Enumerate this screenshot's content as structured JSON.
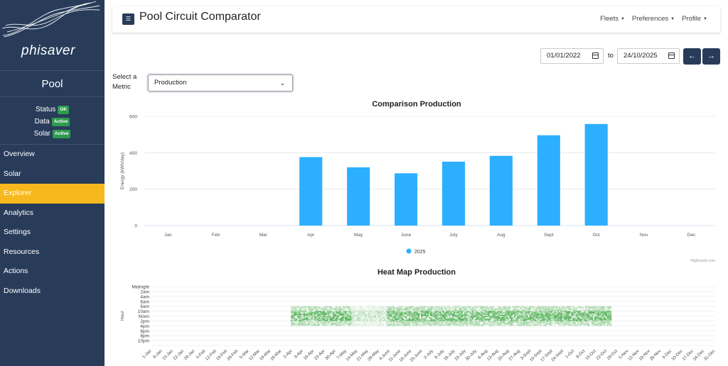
{
  "brand": {
    "name": "phisaver"
  },
  "site": {
    "name": "Pool"
  },
  "status": [
    {
      "label": "Status",
      "badge": "OK"
    },
    {
      "label": "Data",
      "badge": "Active"
    },
    {
      "label": "Solar",
      "badge": "Active"
    }
  ],
  "nav": [
    {
      "label": "Overview",
      "active": false
    },
    {
      "label": "Solar",
      "active": false
    },
    {
      "label": "Explorer",
      "active": true
    },
    {
      "label": "Analytics",
      "active": false
    },
    {
      "label": "Settings",
      "active": false
    },
    {
      "label": "Resources",
      "active": false
    },
    {
      "label": "Actions",
      "active": false
    },
    {
      "label": "Downloads",
      "active": false
    }
  ],
  "header": {
    "title": "Pool Circuit Comparator",
    "menu": [
      "Fleets",
      "Preferences",
      "Profile"
    ],
    "menu_icon": "hamburger-icon"
  },
  "dates": {
    "from": "01/01/2022",
    "to_label": "to",
    "to": "24/10/2025",
    "prev_icon": "←",
    "next_icon": "→"
  },
  "metric": {
    "label": "Select a Metric",
    "selected": "Production"
  },
  "colors": {
    "sidebar": "#283c5a",
    "active_nav": "#f7b81e",
    "bar": "#2caffe",
    "heat": "#4caf50",
    "badge": "#2e9b4f"
  },
  "credit": "Highcharts.com",
  "chart_data": [
    {
      "type": "bar",
      "title": "Comparison Production",
      "ylabel": "Energy (kWh/day)",
      "categories": [
        "Jan",
        "Feb",
        "Mar",
        "Apr",
        "May",
        "June",
        "July",
        "Aug",
        "Sept",
        "Oct",
        "Nov",
        "Dec"
      ],
      "yticks": [
        0,
        200,
        400,
        600
      ],
      "ylim": [
        0,
        600
      ],
      "series": [
        {
          "name": "2025",
          "values": [
            null,
            null,
            null,
            376,
            320,
            287,
            351,
            383,
            496,
            558,
            null,
            null
          ]
        }
      ],
      "legend": "bottom-center",
      "grid": true
    },
    {
      "type": "heatmap",
      "title": "Heat Map Production",
      "ylabel": "Hour",
      "ylabels": [
        "Midnight",
        "2am",
        "4am",
        "6am",
        "8am",
        "10am",
        "Noon",
        "2pm",
        "4pm",
        "6pm",
        "8pm",
        "10pm"
      ],
      "xlabels": [
        "1-Jan",
        "8-Jan",
        "15-Jan",
        "22-Jan",
        "29-Jan",
        "5-Feb",
        "12-Feb",
        "19-Feb",
        "26-Feb",
        "5-Mar",
        "12-Mar",
        "19-Mar",
        "26-Mar",
        "2-Apr",
        "9-Apr",
        "16-Apr",
        "23-Apr",
        "30-Apr",
        "7-May",
        "14-May",
        "21-May",
        "28-May",
        "4-June",
        "11-June",
        "18-June",
        "25-June",
        "2-July",
        "9-July",
        "16-July",
        "23-July",
        "30-July",
        "6-Aug",
        "13-Aug",
        "20-Aug",
        "27-Aug",
        "3-Sept",
        "10-Sept",
        "17-Sept",
        "24-Sept",
        "1-Oct",
        "8-Oct",
        "15-Oct",
        "22-Oct",
        "29-Oct",
        "5-Nov",
        "12-Nov",
        "19-Nov",
        "26-Nov",
        "3-Dec",
        "10-Dec",
        "17-Dec",
        "24-Dec",
        "31-Dec"
      ],
      "active_range": {
        "start": "1-Apr",
        "end": "24-Oct"
      },
      "active_hours": {
        "start": "8am",
        "end": "4pm"
      }
    }
  ]
}
